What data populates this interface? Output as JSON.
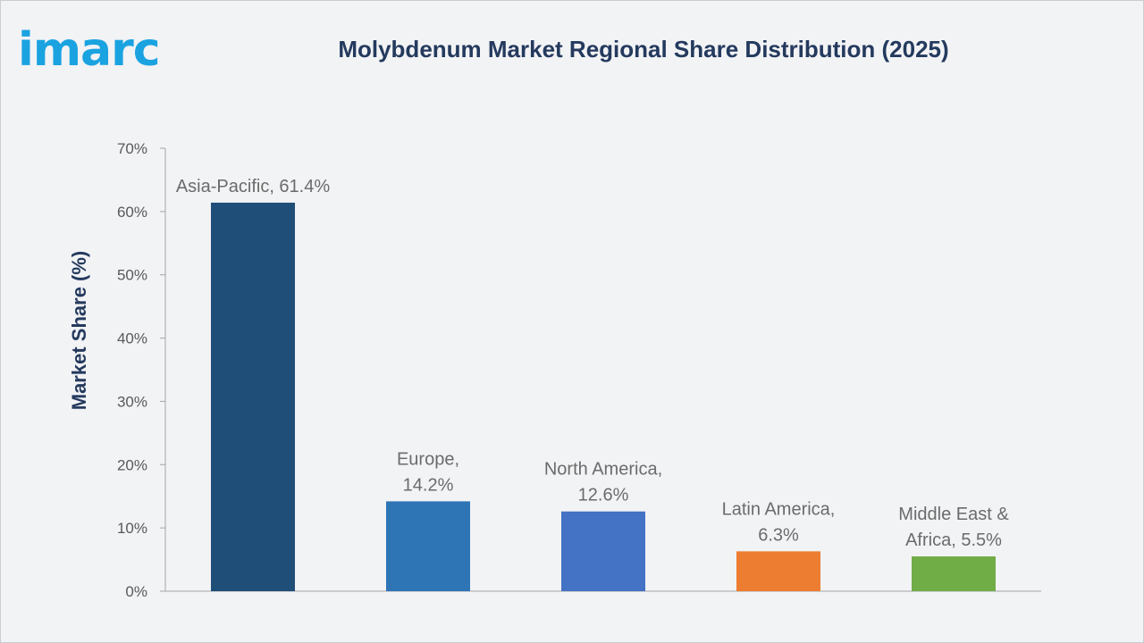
{
  "brand": {
    "logo_text": "imarc",
    "logo_color": "#1aa3e0"
  },
  "chart_data": {
    "type": "bar",
    "title": "Molybdenum Market Regional Share Distribution (2025)",
    "ylabel": "Market Share (%)",
    "xlabel": "",
    "ylim": [
      0,
      70
    ],
    "yticks": [
      "0%",
      "10%",
      "20%",
      "30%",
      "40%",
      "50%",
      "60%",
      "70%"
    ],
    "grid": false,
    "categories": [
      "Asia-Pacific",
      "Europe",
      "North America",
      "Latin America",
      "Middle East & Africa"
    ],
    "values": [
      61.4,
      14.2,
      12.6,
      6.3,
      5.5
    ],
    "colors": [
      "#1f4e79",
      "#2e75b6",
      "#4472c4",
      "#ed7d31",
      "#70ad47"
    ],
    "data_labels": [
      [
        "Asia-Pacific, 61.4%"
      ],
      [
        "Europe,",
        "14.2%"
      ],
      [
        "North America,",
        "12.6%"
      ],
      [
        "Latin America,",
        "6.3%"
      ],
      [
        "Middle East &",
        "Africa, 5.5%"
      ]
    ]
  }
}
